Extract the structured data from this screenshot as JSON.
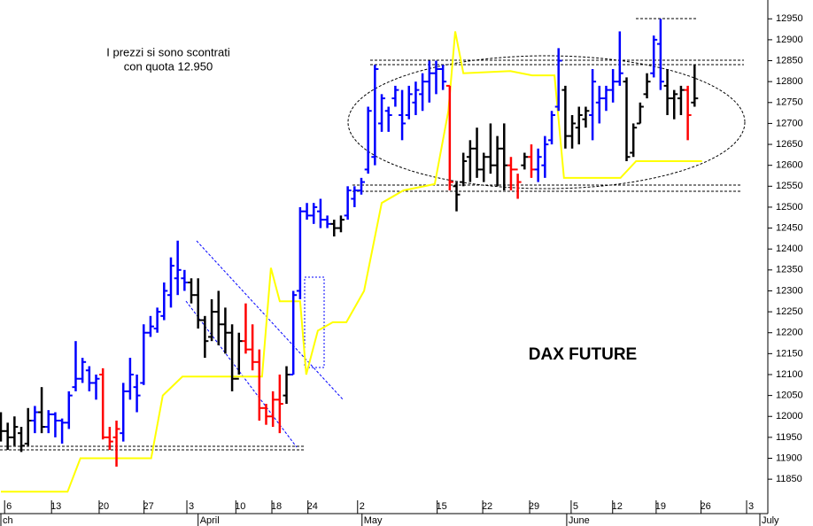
{
  "chart_data": {
    "type": "ohlc",
    "title": "DAX FUTURE",
    "annotation": [
      "I prezzi si sono scontrati",
      "con quota 12.950"
    ],
    "xlim": [
      -0.13,
      112.77
    ],
    "ylim": [
      11772,
      12995
    ],
    "yticks": [
      11850,
      11900,
      11950,
      12000,
      12050,
      12100,
      12150,
      12200,
      12250,
      12300,
      12350,
      12400,
      12450,
      12500,
      12550,
      12600,
      12650,
      12700,
      12750,
      12800,
      12850,
      12900,
      12950
    ],
    "xticks": [
      {
        "value": 1.2,
        "label": "6"
      },
      {
        "value": 8.1,
        "label": "13"
      },
      {
        "value": 15.1,
        "label": "20"
      },
      {
        "value": 21.7,
        "label": "27"
      },
      {
        "value": 28.0,
        "label": "3"
      },
      {
        "value": 35.2,
        "label": "10"
      },
      {
        "value": 40.5,
        "label": "18"
      },
      {
        "value": 45.8,
        "label": "24"
      },
      {
        "value": 53.1,
        "label": "2"
      },
      {
        "value": 64.8,
        "label": "15"
      },
      {
        "value": 71.5,
        "label": "22"
      },
      {
        "value": 78.4,
        "label": "29"
      },
      {
        "value": 84.5,
        "label": "5"
      },
      {
        "value": 90.6,
        "label": "12"
      },
      {
        "value": 97.0,
        "label": "19"
      },
      {
        "value": 103.6,
        "label": "26"
      },
      {
        "value": 110.3,
        "label": "3"
      }
    ],
    "month_ticks": [
      {
        "value": 0,
        "label": "ch"
      },
      {
        "value": 29.0,
        "label": "April"
      },
      {
        "value": 53.1,
        "label": "May"
      },
      {
        "value": 83.2,
        "label": "June"
      },
      {
        "value": 111.6,
        "label": "July"
      }
    ],
    "x": [
      0,
      1,
      2,
      3,
      4,
      5,
      6,
      7,
      8,
      9,
      10,
      11,
      12,
      13,
      14,
      15,
      16,
      17,
      18,
      19,
      20,
      21,
      22,
      23,
      24,
      25,
      26,
      27,
      28,
      29,
      30,
      31,
      32,
      33,
      34,
      35,
      36,
      37,
      38,
      39,
      40,
      41,
      42,
      43,
      44,
      45,
      46,
      47,
      48,
      49,
      50,
      51,
      52,
      53,
      54,
      55,
      56,
      57,
      58,
      59,
      60,
      61,
      62,
      63,
      64,
      65,
      66,
      67,
      68,
      69,
      70,
      71,
      72,
      73,
      74,
      75,
      76,
      77,
      78,
      79,
      80,
      81,
      82,
      83,
      84,
      85,
      86,
      87,
      88,
      89,
      90,
      91,
      92,
      93,
      94,
      95,
      96,
      97,
      98,
      99,
      100,
      101,
      102
    ],
    "high": [
      12010,
      11985,
      12000,
      11975,
      12020,
      12025,
      12070,
      12015,
      12010,
      11995,
      12060,
      12180,
      12140,
      12120,
      12100,
      12115,
      11975,
      11990,
      12080,
      12140,
      12100,
      12220,
      12240,
      12260,
      12320,
      12380,
      12420,
      12350,
      12330,
      12330,
      12240,
      12280,
      12300,
      12260,
      12220,
      12200,
      12270,
      12220,
      12160,
      12030,
      12060,
      12100,
      12120,
      12300,
      12500,
      12510,
      12510,
      12520,
      12480,
      12470,
      12480,
      12550,
      12550,
      12570,
      12740,
      12840,
      12770,
      12740,
      12790,
      12780,
      12790,
      12800,
      12820,
      12850,
      12850,
      12840,
      12790,
      12560,
      12630,
      12660,
      12690,
      12630,
      12700,
      12670,
      12700,
      12620,
      12580,
      12630,
      12650,
      12640,
      12670,
      12730,
      12880,
      12790,
      12720,
      12740,
      12740,
      12830,
      12790,
      12790,
      12830,
      12920,
      12810,
      12700,
      12750,
      12820,
      12910,
      12950,
      12830,
      12780,
      12790,
      12790,
      12840
    ],
    "low": [
      11940,
      11920,
      11930,
      11915,
      11930,
      11960,
      11960,
      11960,
      11950,
      11935,
      11970,
      12060,
      12080,
      12060,
      12040,
      11945,
      11920,
      11880,
      11940,
      12040,
      12010,
      12075,
      12190,
      12200,
      12230,
      12260,
      12290,
      12300,
      12270,
      12210,
      12140,
      12180,
      12170,
      12150,
      12060,
      12100,
      12150,
      12110,
      11990,
      11980,
      11975,
      11960,
      12030,
      12100,
      12280,
      12470,
      12460,
      12450,
      12450,
      12430,
      12440,
      12470,
      12500,
      12530,
      12580,
      12600,
      12680,
      12680,
      12740,
      12660,
      12710,
      12720,
      12730,
      12750,
      12770,
      12780,
      12540,
      12490,
      12550,
      12560,
      12570,
      12560,
      12580,
      12550,
      12540,
      12540,
      12520,
      12590,
      12570,
      12560,
      12570,
      12650,
      12730,
      12640,
      12640,
      12650,
      12690,
      12660,
      12700,
      12730,
      12750,
      12790,
      12610,
      12620,
      12700,
      12760,
      12810,
      12780,
      12720,
      12710,
      12720,
      12660,
      12740
    ],
    "open": [
      11990,
      11965,
      11950,
      11960,
      11935,
      11990,
      12010,
      11975,
      12005,
      11990,
      11985,
      12070,
      12090,
      12110,
      12080,
      12100,
      11950,
      11950,
      11960,
      12060,
      12070,
      12080,
      12200,
      12210,
      12240,
      12290,
      12330,
      12330,
      12320,
      12290,
      12230,
      12190,
      12250,
      12220,
      12200,
      12090,
      12180,
      12160,
      12130,
      12020,
      12000,
      12040,
      12050,
      12100,
      12300,
      12490,
      12480,
      12490,
      12470,
      12460,
      12450,
      12480,
      12520,
      12540,
      12590,
      12620,
      12700,
      12730,
      12760,
      12720,
      12720,
      12750,
      12770,
      12800,
      12820,
      12830,
      12790,
      12550,
      12560,
      12620,
      12640,
      12590,
      12620,
      12600,
      12640,
      12600,
      12590,
      12600,
      12620,
      12590,
      12600,
      12660,
      12740,
      12780,
      12670,
      12690,
      12710,
      12720,
      12750,
      12760,
      12780,
      12800,
      12800,
      12630,
      12700,
      12770,
      12820,
      12890,
      12790,
      12760,
      12760,
      12780,
      12750
    ],
    "close": [
      11965,
      11950,
      11975,
      11930,
      11990,
      12010,
      11975,
      12005,
      11990,
      11985,
      12050,
      12090,
      12130,
      12080,
      12090,
      11950,
      11940,
      11970,
      12060,
      12100,
      12050,
      12200,
      12215,
      12250,
      12300,
      12360,
      12350,
      12320,
      12290,
      12230,
      12180,
      12250,
      12220,
      12200,
      12090,
      12180,
      12160,
      12130,
      12020,
      12000,
      12040,
      12030,
      12100,
      12290,
      12490,
      12480,
      12500,
      12470,
      12460,
      12450,
      12470,
      12540,
      12540,
      12560,
      12730,
      12830,
      12760,
      12720,
      12780,
      12700,
      12770,
      12780,
      12800,
      12820,
      12830,
      12800,
      12560,
      12530,
      12610,
      12640,
      12590,
      12620,
      12600,
      12640,
      12600,
      12590,
      12560,
      12620,
      12590,
      12620,
      12650,
      12720,
      12850,
      12670,
      12700,
      12720,
      12730,
      12800,
      12760,
      12780,
      12800,
      12820,
      12620,
      12690,
      12740,
      12800,
      12900,
      12800,
      12760,
      12770,
      12780,
      12720,
      12760
    ],
    "colors": [
      "#000000",
      "#000000",
      "#000000",
      "#000000",
      "#000000",
      "#0000ff",
      "#000000",
      "#0000ff",
      "#0000ff",
      "#0000ff",
      "#0000ff",
      "#0000ff",
      "#0000ff",
      "#0000ff",
      "#0000ff",
      "#ff0000",
      "#ff0000",
      "#ff0000",
      "#0000ff",
      "#0000ff",
      "#0000ff",
      "#0000ff",
      "#0000ff",
      "#0000ff",
      "#0000ff",
      "#0000ff",
      "#0000ff",
      "#0000ff",
      "#000000",
      "#000000",
      "#000000",
      "#000000",
      "#000000",
      "#000000",
      "#000000",
      "#000000",
      "#ff0000",
      "#ff0000",
      "#ff0000",
      "#ff0000",
      "#ff0000",
      "#ff0000",
      "#000000",
      "#0000ff",
      "#0000ff",
      "#0000ff",
      "#0000ff",
      "#0000ff",
      "#0000ff",
      "#000000",
      "#000000",
      "#0000ff",
      "#0000ff",
      "#0000ff",
      "#0000ff",
      "#0000ff",
      "#0000ff",
      "#0000ff",
      "#0000ff",
      "#0000ff",
      "#0000ff",
      "#0000ff",
      "#0000ff",
      "#0000ff",
      "#0000ff",
      "#0000ff",
      "#ff0000",
      "#000000",
      "#000000",
      "#000000",
      "#000000",
      "#000000",
      "#000000",
      "#000000",
      "#000000",
      "#ff0000",
      "#ff0000",
      "#000000",
      "#ff0000",
      "#0000ff",
      "#0000ff",
      "#0000ff",
      "#0000ff",
      "#000000",
      "#000000",
      "#000000",
      "#000000",
      "#0000ff",
      "#0000ff",
      "#0000ff",
      "#0000ff",
      "#0000ff",
      "#000000",
      "#000000",
      "#000000",
      "#000000",
      "#0000ff",
      "#0000ff",
      "#000000",
      "#000000",
      "#000000",
      "#ff0000",
      "#000000"
    ],
    "line": {
      "color": "#ffff00",
      "x": [
        0,
        9.8,
        11.7,
        22.1,
        23.8,
        26.7,
        38.4,
        39.7,
        41,
        44,
        44.9,
        46.6,
        48.8,
        50.8,
        53.4,
        56,
        59.2,
        63.8,
        65.8,
        66.8,
        68,
        74.9,
        78.1,
        81.4,
        82.8,
        91.1,
        93.4,
        103.1
      ],
      "values": [
        11820,
        11820,
        11900,
        11900,
        12050,
        12095,
        12095,
        12355,
        12275,
        12275,
        12100,
        12205,
        12225,
        12225,
        12300,
        12510,
        12540,
        12555,
        12730,
        12920,
        12820,
        12825,
        12815,
        12815,
        12570,
        12570,
        12610,
        12610
      ]
    }
  }
}
